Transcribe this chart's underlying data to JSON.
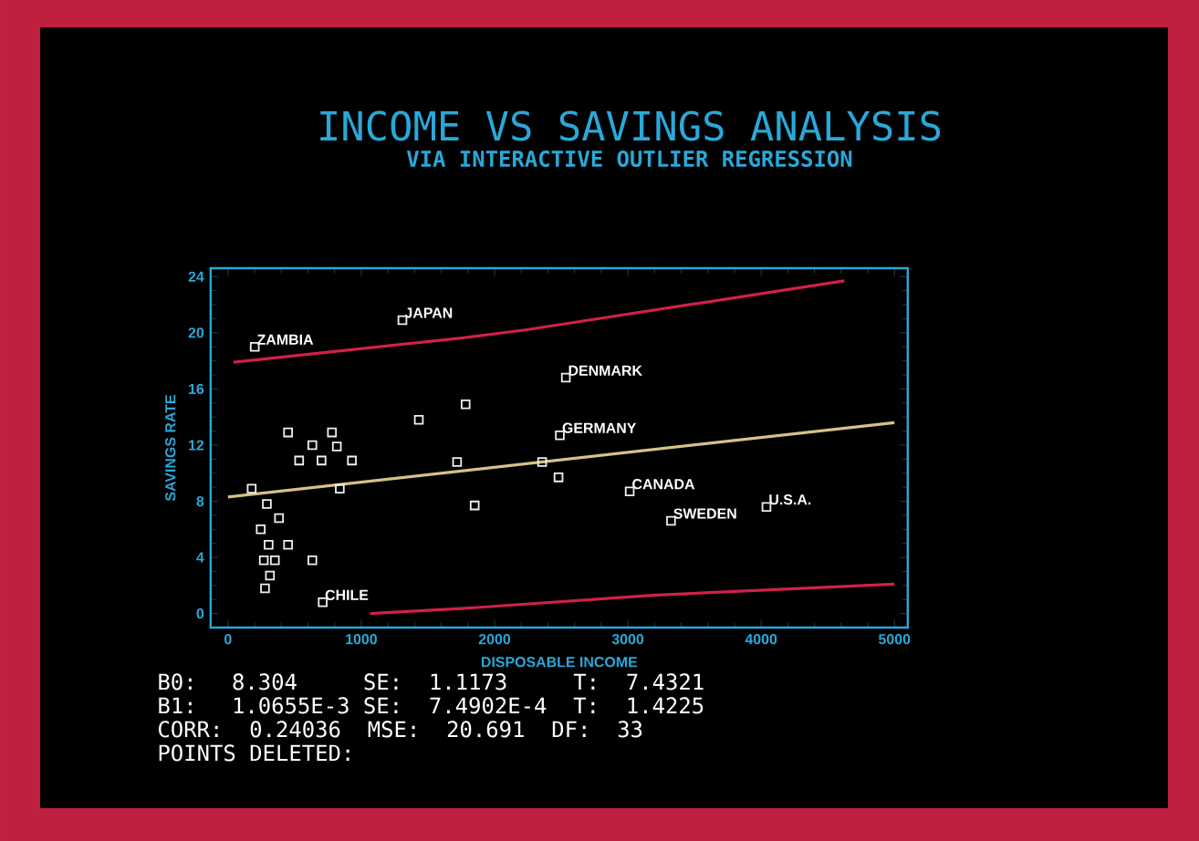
{
  "chart_data": {
    "type": "line",
    "title": "INCOME VS SAVINGS ANALYSIS",
    "subtitle": "VIA INTERACTIVE OUTLIER REGRESSION",
    "xlabel": "DISPOSABLE INCOME",
    "ylabel": "SAVINGS RATE",
    "xlim": [
      -130,
      5100
    ],
    "ylim": [
      -1,
      24.6
    ],
    "xticks": [
      0,
      1000,
      2000,
      3000,
      4000,
      5000
    ],
    "yticks": [
      0,
      4,
      8,
      12,
      16,
      20,
      24
    ],
    "grid": false,
    "series": [
      {
        "type": "scatter",
        "marker": "square",
        "color": "#f0f0f0",
        "x": [
          201,
          1309,
          178,
          292,
          383,
          246,
          305,
          451,
          269,
          352,
          315,
          278,
          633,
          711,
          451,
          633,
          780,
          817,
          534,
          702,
          930,
          839,
          1432,
          1783,
          1719,
          1851,
          2535,
          2490,
          2357,
          2480,
          3014,
          3324,
          4040
        ],
        "values": [
          19.0,
          20.9,
          8.9,
          7.8,
          6.8,
          6.0,
          4.9,
          4.9,
          3.8,
          3.8,
          2.7,
          1.8,
          3.8,
          0.8,
          12.9,
          12.0,
          12.9,
          11.9,
          10.9,
          10.9,
          10.9,
          8.9,
          13.8,
          14.9,
          10.8,
          7.7,
          16.8,
          12.7,
          10.8,
          9.7,
          8.7,
          6.6,
          7.6
        ]
      },
      {
        "marker": "none",
        "color": "#d8c088",
        "x": [
          0,
          5000
        ],
        "values": [
          8.3,
          13.6
        ]
      },
      {
        "marker": "none",
        "color": "#d0204a",
        "x": [
          41,
          1819,
          2230,
          4624
        ],
        "values": [
          17.9,
          19.7,
          20.2,
          23.7
        ]
      },
      {
        "marker": "none",
        "color": "#d0204a",
        "x": [
          1067,
          1819,
          3187,
          5000
        ],
        "values": [
          0.0,
          0.4,
          1.3,
          2.1
        ]
      }
    ],
    "annotations": [
      {
        "text": "ZAMBIA",
        "x": 201,
        "y": 19.0
      },
      {
        "text": "JAPAN",
        "x": 1309,
        "y": 20.9
      },
      {
        "text": "CHILE",
        "x": 711,
        "y": 0.8
      },
      {
        "text": "DENMARK",
        "x": 2535,
        "y": 16.8
      },
      {
        "text": "GERMANY",
        "x": 2490,
        "y": 12.7
      },
      {
        "text": "CANADA",
        "x": 3014,
        "y": 8.7
      },
      {
        "text": "SWEDEN",
        "x": 3324,
        "y": 6.6
      },
      {
        "text": "U.S.A.",
        "x": 4040,
        "y": 7.6
      },
      "B0:  8.304     SE:  1.1173     T:  7.4321",
      "B1:  1.0655E-3 SE:  7.4902E-4  T:  1.4225",
      "CORR:  0.24036  MSE:  20.691  DF:  33",
      "POINTS DELETED:"
    ]
  }
}
